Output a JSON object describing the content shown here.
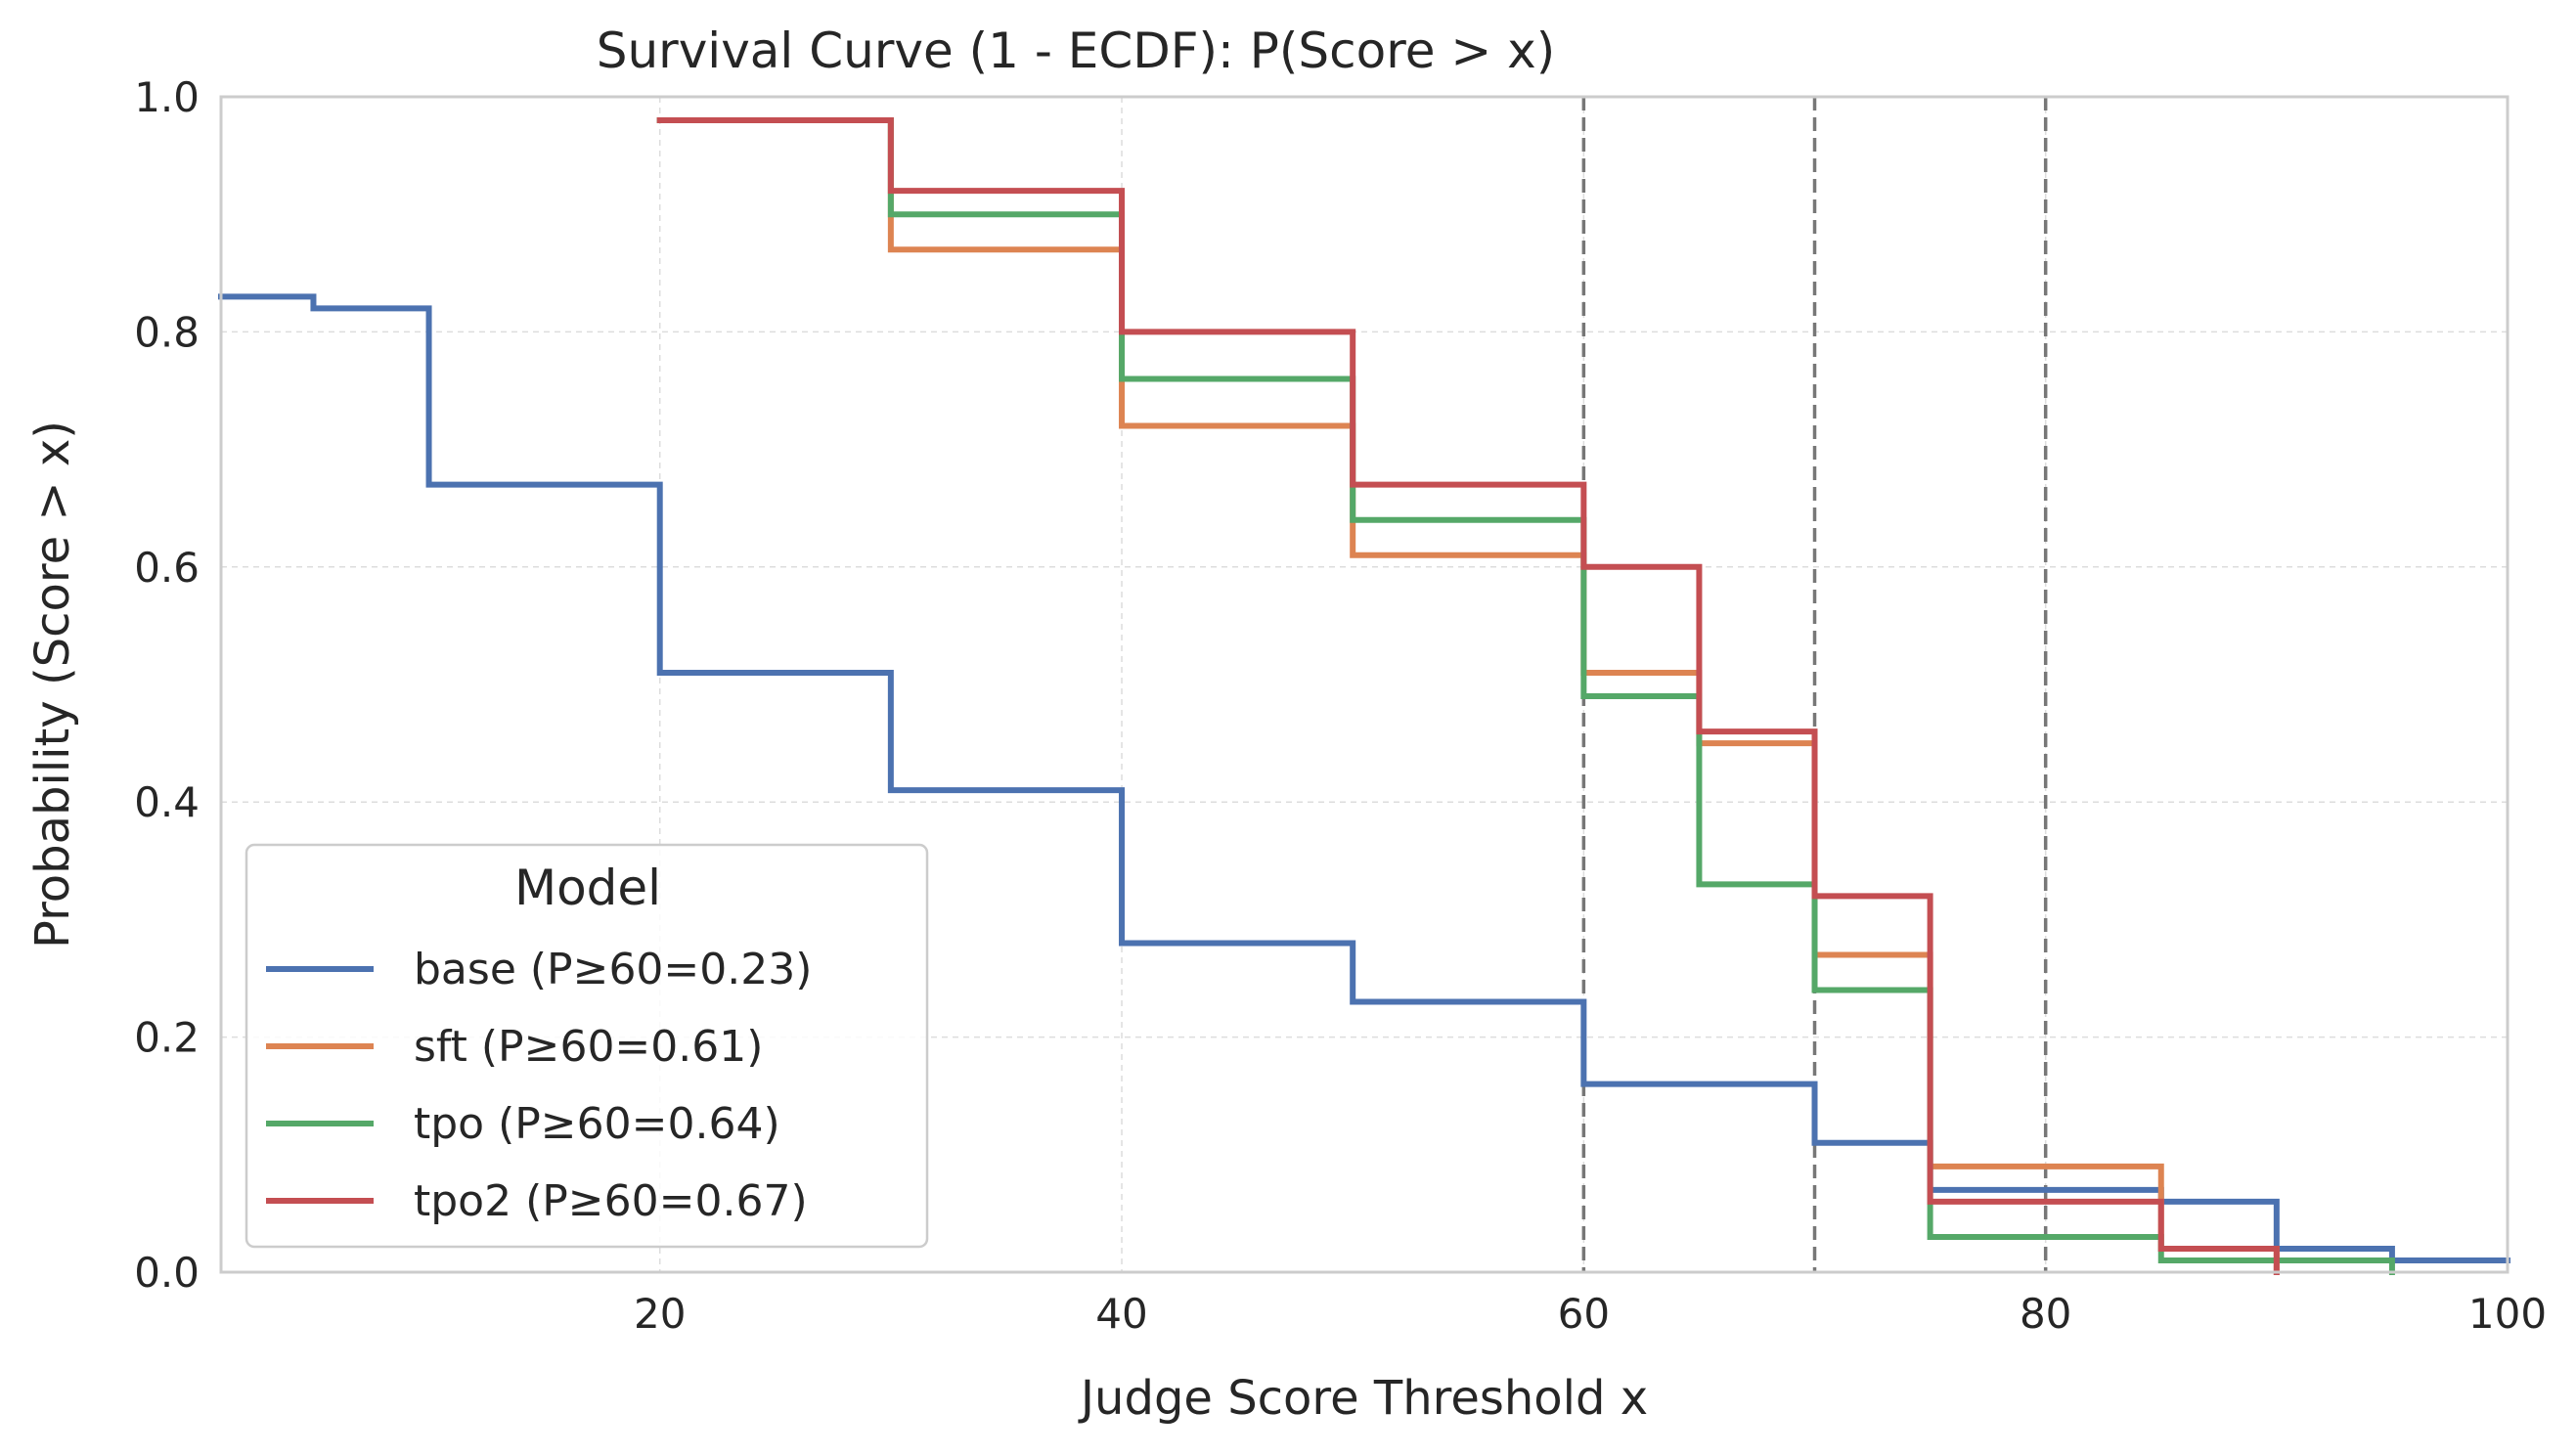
{
  "chart_data": {
    "type": "line",
    "subtype": "step",
    "title": "Survival Curve (1 - ECDF): P(Score > x)",
    "xlabel": "Judge Score Threshold x",
    "ylabel": "Probability (Score > x)",
    "xlim": [
      1,
      100
    ],
    "ylim": [
      0,
      1
    ],
    "xticks": [
      20,
      40,
      60,
      80,
      100
    ],
    "xtick_labels": [
      "20",
      "40",
      "60",
      "80",
      "100"
    ],
    "yticks": [
      0,
      0.2,
      0.4,
      0.6,
      0.8,
      1.0
    ],
    "ytick_labels": [
      "0.0",
      "0.2",
      "0.4",
      "0.6",
      "0.8",
      "1.0"
    ],
    "grid": true,
    "vlines": [
      60,
      70,
      80
    ],
    "legend": {
      "title": "Model",
      "position": "lower-left"
    },
    "series": [
      {
        "name": "base",
        "label": "base  (P≥60=0.23)",
        "color": "#4c72b0",
        "x": [
          1,
          5,
          10,
          20,
          30,
          40,
          50,
          60,
          70,
          75,
          85,
          90,
          95,
          100
        ],
        "y": [
          0.83,
          0.82,
          0.67,
          0.51,
          0.41,
          0.28,
          0.23,
          0.16,
          0.11,
          0.07,
          0.06,
          0.02,
          0.01,
          0.01
        ]
      },
      {
        "name": "sft",
        "label": "sft  (P≥60=0.61)",
        "color": "#dd8452",
        "x": [
          20,
          30,
          40,
          50,
          60,
          65,
          70,
          75,
          85,
          90
        ],
        "y": [
          0.98,
          0.87,
          0.72,
          0.61,
          0.51,
          0.45,
          0.27,
          0.09,
          0.02,
          0.0
        ]
      },
      {
        "name": "tpo",
        "label": "tpo  (P≥60=0.64)",
        "color": "#55a868",
        "x": [
          20,
          30,
          40,
          50,
          60,
          65,
          70,
          75,
          85,
          95
        ],
        "y": [
          0.98,
          0.9,
          0.76,
          0.64,
          0.49,
          0.33,
          0.24,
          0.03,
          0.01,
          0.0
        ]
      },
      {
        "name": "tpo2",
        "label": "tpo2  (P≥60=0.67)",
        "color": "#c44e52",
        "x": [
          20,
          30,
          40,
          50,
          60,
          65,
          70,
          75,
          85,
          90
        ],
        "y": [
          0.98,
          0.92,
          0.8,
          0.67,
          0.6,
          0.46,
          0.32,
          0.06,
          0.02,
          0.0
        ]
      }
    ]
  }
}
